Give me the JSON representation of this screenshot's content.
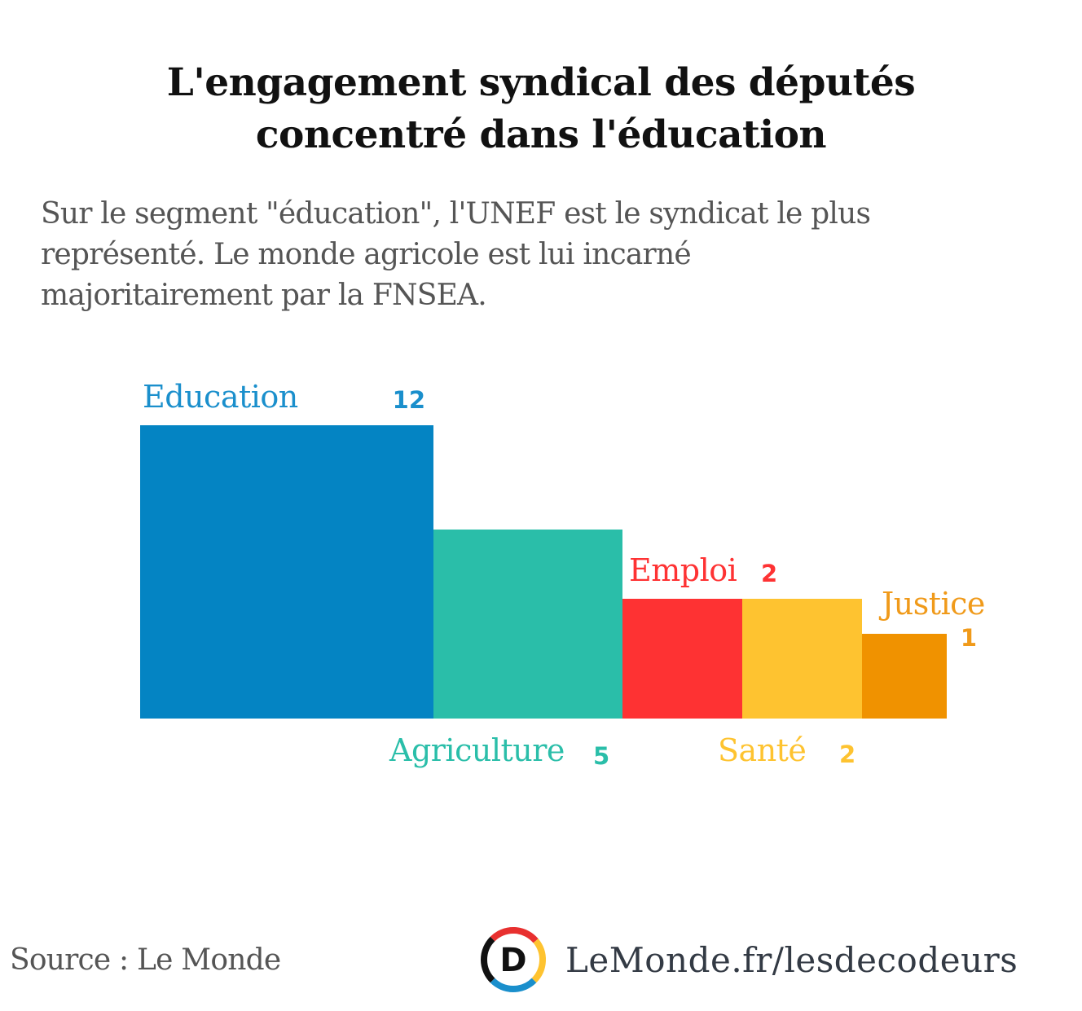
{
  "header": {
    "title_line1": "L'engagement syndical des députés",
    "title_line2": "concentré dans l'éducation",
    "subtitle_line1": "Sur le segment \"éducation\", l'UNEF est le syndicat le plus",
    "subtitle_line2": "représenté. Le monde agricole est lui incarné",
    "subtitle_line3": "majoritairement par la FNSEA."
  },
  "chart_data": {
    "type": "bar",
    "subtype": "proportional-area squares",
    "title": "L'engagement syndical des députés concentré dans l'éducation",
    "subtitle": "Sur le segment \"éducation\", l'UNEF est le syndicat le plus représenté. Le monde agricole est lui incarné majoritairement par la FNSEA.",
    "categories": [
      "Education",
      "Agriculture",
      "Emploi",
      "Santé",
      "Justice"
    ],
    "values": [
      12,
      5,
      2,
      2,
      1
    ],
    "colors": [
      "#0484c3",
      "#2abea9",
      "#fe3233",
      "#fec330",
      "#f09200"
    ],
    "label_colors": [
      "#1a8fcc",
      "#2abea9",
      "#fe3233",
      "#fec330",
      "#f09a1a"
    ],
    "label_positions": [
      "above",
      "below",
      "above",
      "below",
      "above-right"
    ],
    "xlabel": "",
    "ylabel": "",
    "grid": false,
    "legend": "none"
  },
  "footer": {
    "source": "Source : Le Monde",
    "brand_text": "LeMonde.fr/lesdecodeurs",
    "logo_letter": "D",
    "logo_colors": [
      "#e8302f",
      "#fec330",
      "#1a8fcc",
      "#111111"
    ]
  }
}
